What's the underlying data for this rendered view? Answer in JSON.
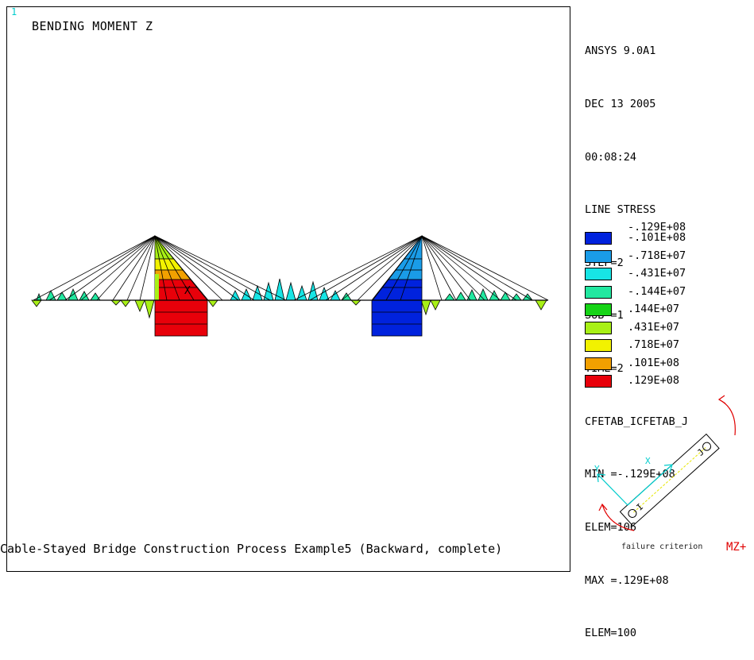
{
  "window_number": "1",
  "plot_title": "BENDING MOMENT Z",
  "info_lines": [
    "ANSYS 9.0A1",
    "DEC 13 2005",
    "00:08:24",
    "LINE STRESS",
    "STEP=2",
    "SUB =1",
    "TIME=2",
    "CFETAB_ICFETAB_J",
    "MIN =-.129E+08",
    "ELEM=106",
    "MAX =.129E+08",
    "ELEM=100"
  ],
  "legend": {
    "top_label": "-.129E+08",
    "items": [
      {
        "label": "-.101E+08",
        "color": "#0022dd"
      },
      {
        "label": "-.718E+07",
        "color": "#1a9ce8"
      },
      {
        "label": "-.431E+07",
        "color": "#17e5e5"
      },
      {
        "label": "-.144E+07",
        "color": "#22e8a0"
      },
      {
        "label": ".144E+07",
        "color": "#16d416"
      },
      {
        "label": ".431E+07",
        "color": "#a8f016"
      },
      {
        "label": ".718E+07",
        "color": "#f2f200"
      },
      {
        "label": ".101E+08",
        "color": "#f2a000"
      },
      {
        "label": ".129E+08",
        "color": "#e8000a"
      }
    ]
  },
  "triad": {
    "node_i": "I",
    "node_j": "J",
    "axis_x": "X",
    "axis_y": "Y",
    "failure_label": "failure criterion",
    "moment_label": "MZ+"
  },
  "caption": "Cable-Stayed Bridge Construction Process Example5 (Backward, complete)"
}
